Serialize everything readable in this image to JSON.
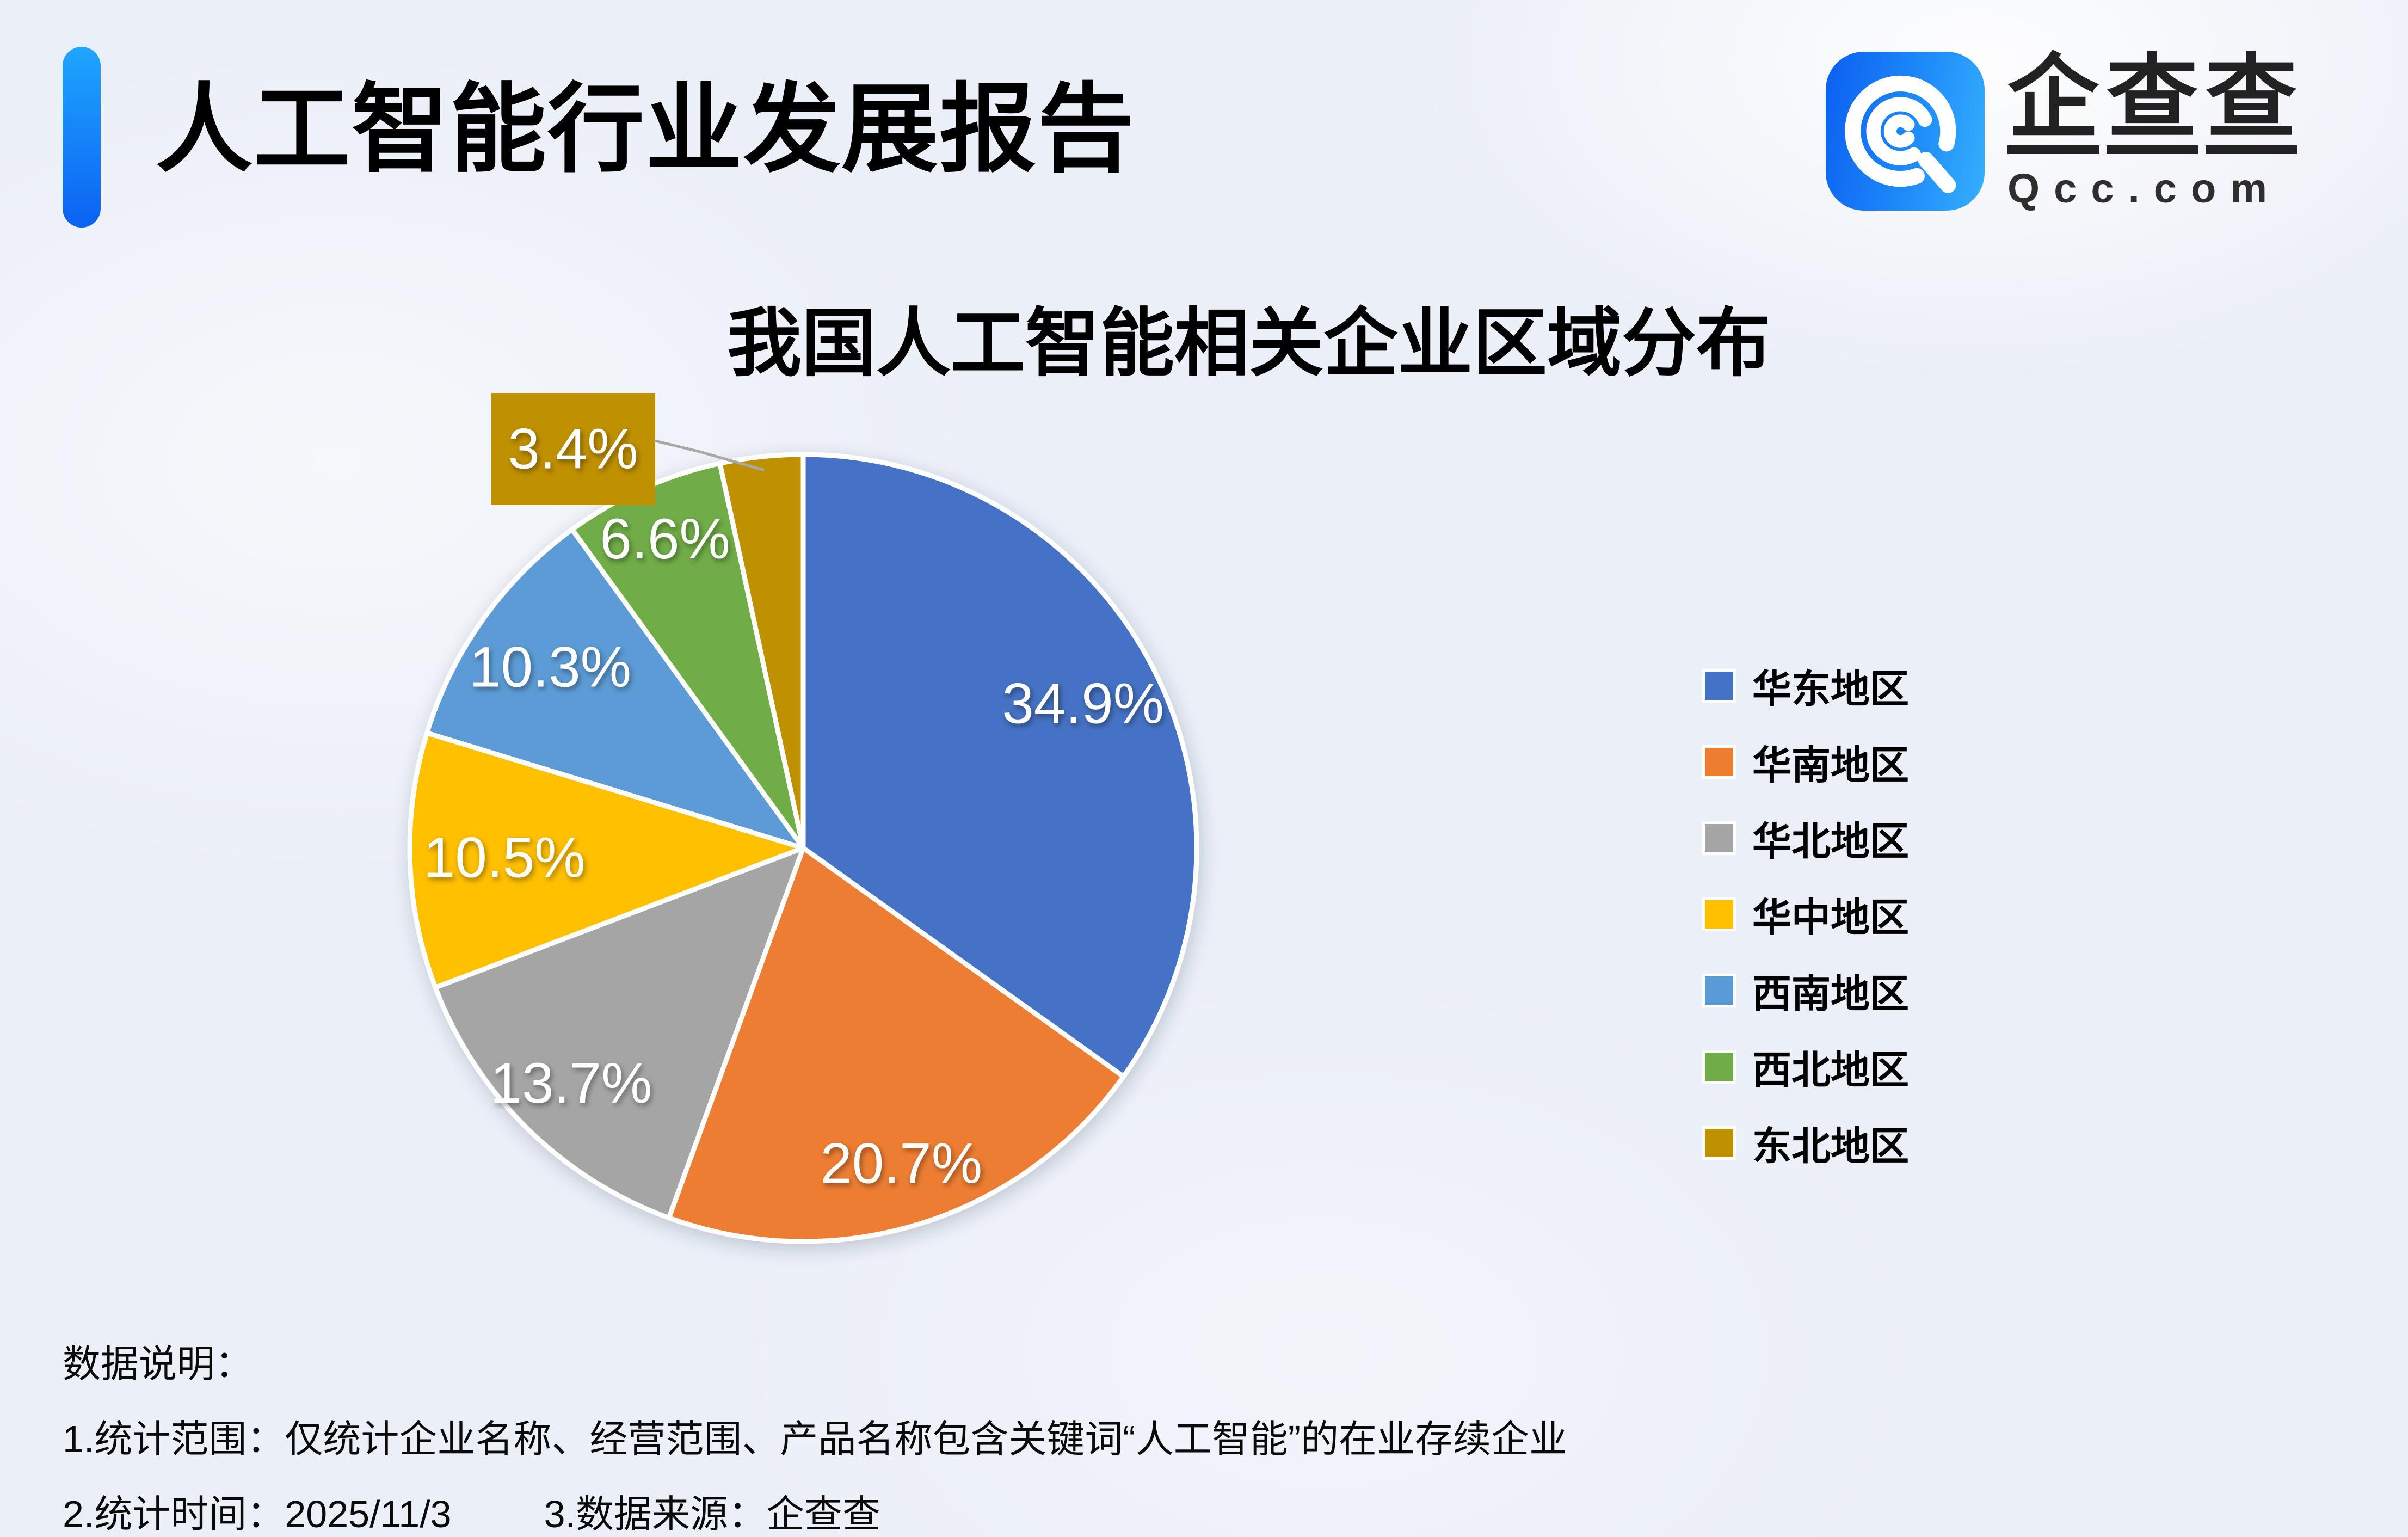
{
  "header": {
    "title": "人工智能行业发展报告"
  },
  "logo": {
    "name": "企查查",
    "domain": "Qcc.com",
    "icon": "qcc-spiral-q-icon",
    "icon_color_start": "#0B5FF1",
    "icon_color_end": "#35B0FE"
  },
  "chart_data": {
    "type": "pie",
    "title": "我国人工智能相关企业区域分布",
    "categories": [
      "华东地区",
      "华南地区",
      "华北地区",
      "华中地区",
      "西南地区",
      "西北地区",
      "东北地区"
    ],
    "values": [
      34.9,
      20.7,
      13.7,
      10.5,
      10.3,
      6.6,
      3.4
    ],
    "labels": [
      "34.9%",
      "20.7%",
      "13.7%",
      "10.5%",
      "10.3%",
      "6.6%",
      "3.4%"
    ],
    "colors": [
      "#4472C4",
      "#ED7D31",
      "#A5A5A5",
      "#FFC000",
      "#5B9BD5",
      "#70AD47",
      "#BF9000"
    ],
    "legend_position": "right",
    "start_angle_deg": 0,
    "direction": "clockwise",
    "callout_index": 6,
    "leader_line_color": "#A8A8A8"
  },
  "notes": {
    "heading": "数据说明：",
    "line1": "1.统计范围：仅统计企业名称、经营范围、产品名称包含关键词“人工智能”的在业存续企业",
    "line2_left": "2.统计时间：2025/11/3",
    "line2_right": "3.数据来源：企查查"
  }
}
